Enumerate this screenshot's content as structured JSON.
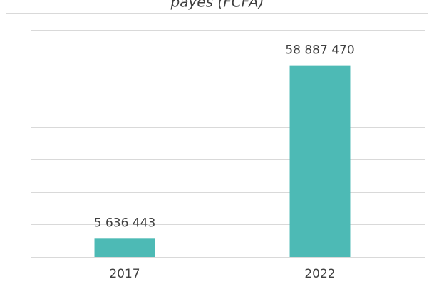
{
  "chart_data": {
    "type": "bar",
    "title": "payés (FCFA)",
    "categories": [
      "2017",
      "2022"
    ],
    "values": [
      5636443,
      58887470
    ],
    "value_labels": [
      "5 636 443",
      "58 887 470"
    ],
    "color": "#4dbab5",
    "ylim": [
      0,
      70000000
    ],
    "yticks": [
      0,
      10000000,
      20000000,
      30000000,
      40000000,
      50000000,
      60000000,
      70000000
    ],
    "grid": true
  }
}
